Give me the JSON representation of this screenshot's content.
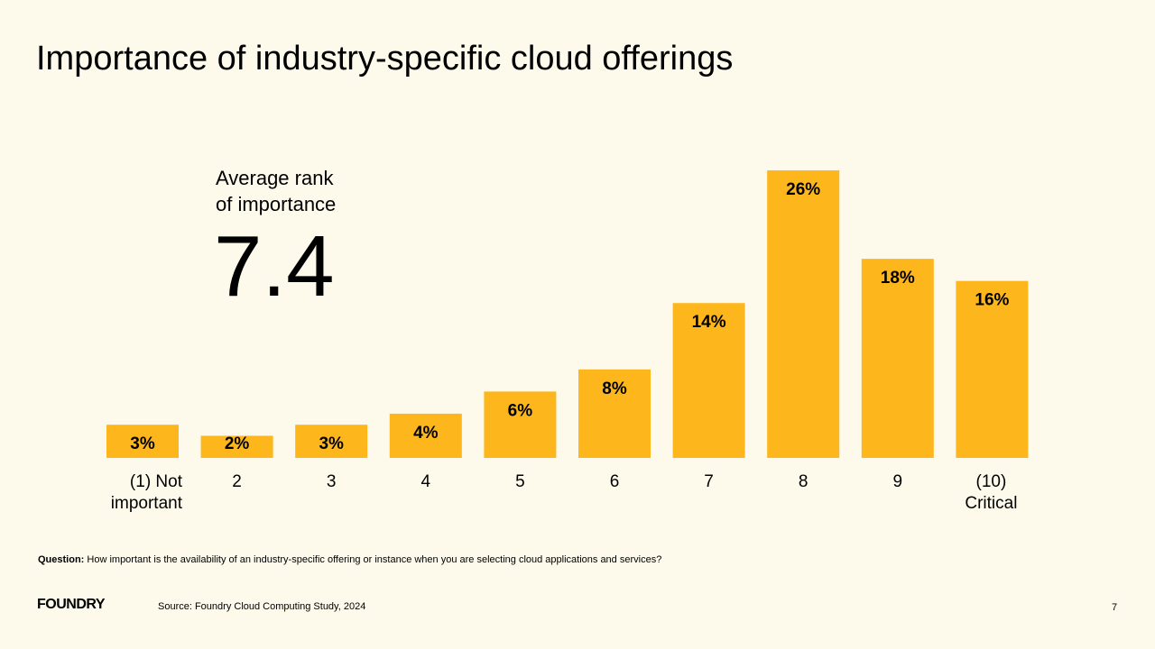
{
  "title": "Importance of industry-specific cloud offerings",
  "average": {
    "label_line1": "Average rank",
    "label_line2": "of importance",
    "value": "7.4"
  },
  "chart_data": {
    "type": "bar",
    "categories": [
      [
        "(1) Not",
        "important"
      ],
      [
        "2"
      ],
      [
        "3"
      ],
      [
        "4"
      ],
      [
        "5"
      ],
      [
        "6"
      ],
      [
        "7"
      ],
      [
        "8"
      ],
      [
        "9"
      ],
      [
        "(10)",
        "Critical"
      ]
    ],
    "values": [
      3,
      2,
      3,
      4,
      6,
      8,
      14,
      26,
      18,
      16
    ],
    "data_labels": [
      "3%",
      "2%",
      "3%",
      "4%",
      "6%",
      "8%",
      "14%",
      "26%",
      "18%",
      "16%"
    ],
    "unit": "%",
    "bar_color": "#fdb71c",
    "grid": false
  },
  "footer": {
    "question_label": "Question:",
    "question_text": " How important is the availability of an industry-specific offering or instance when you are selecting cloud applications and services?",
    "logo": "FOUNDRY",
    "source": "Source: Foundry Cloud Computing Study, 2024",
    "page": "7"
  }
}
